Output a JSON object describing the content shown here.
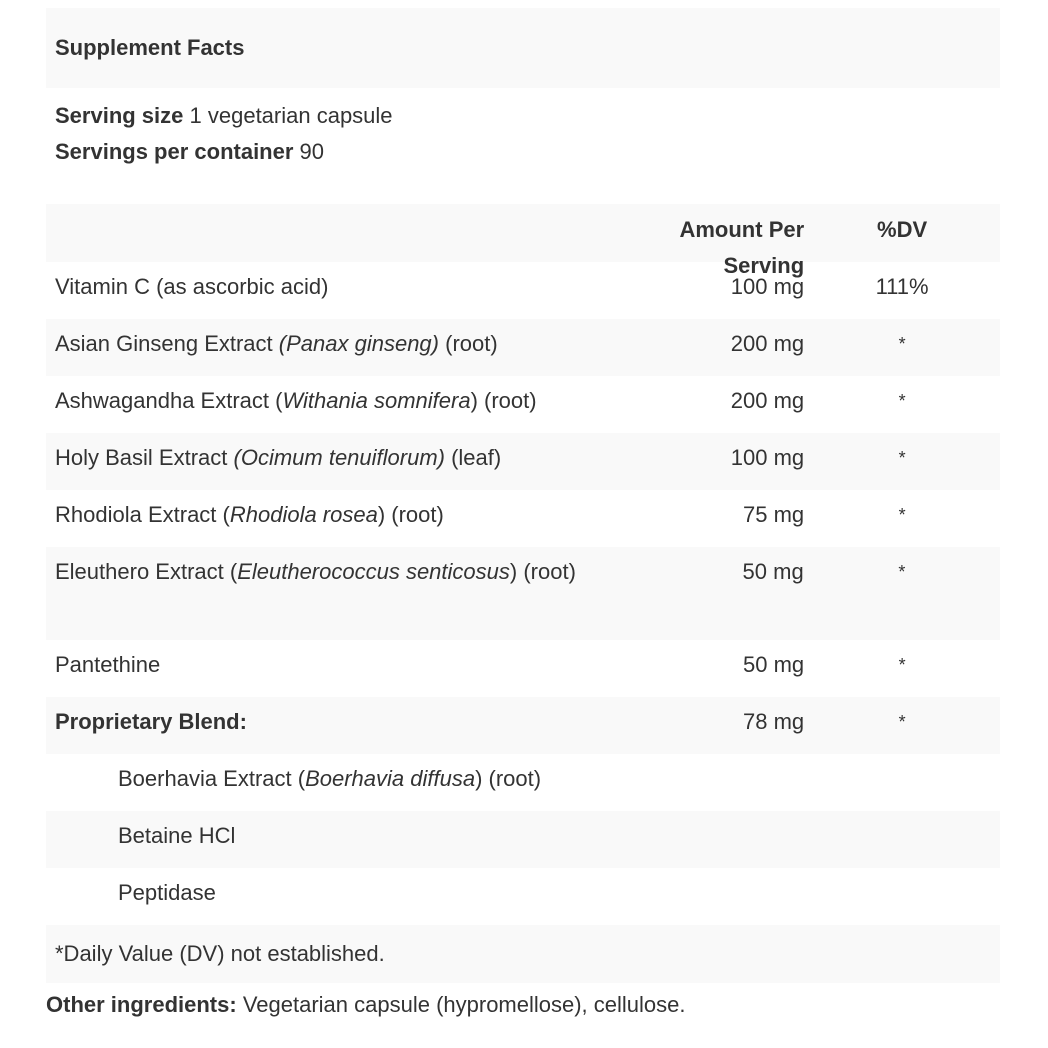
{
  "title": "Supplement Facts",
  "serving_size_label": "Serving size",
  "serving_size_value": "1 vegetarian capsule",
  "servings_label": "Servings per container",
  "servings_value": "90",
  "header": {
    "amount": "Amount Per Serving",
    "dv": "%DV"
  },
  "rows": [
    {
      "pre": "Vitamin C (as ascorbic acid)",
      "it": "",
      "post": "",
      "amount": "100 mg",
      "dv": "111%"
    },
    {
      "pre": "Asian Ginseng Extract ",
      "it": "(Panax ginseng)",
      "post": " (root)",
      "amount": "200 mg",
      "dv": "*"
    },
    {
      "pre": "Ashwagandha Extract (",
      "it": "Withania somnifera",
      "post": ") (root)",
      "amount": "200 mg",
      "dv": "*"
    },
    {
      "pre": "Holy Basil Extract ",
      "it": "(Ocimum tenuiflorum)",
      "post": " (leaf)",
      "amount": "100 mg",
      "dv": "*"
    },
    {
      "pre": "Rhodiola Extract (",
      "it": "Rhodiola rosea",
      "post": ") (root)",
      "amount": "75 mg",
      "dv": "*"
    },
    {
      "pre": "Eleuthero Extract (",
      "it": "Eleutherococcus senticosus",
      "post": ") (root)",
      "amount": "50 mg",
      "dv": "*"
    },
    {
      "pre": "Pantethine",
      "it": "",
      "post": "",
      "amount": "50 mg",
      "dv": "*"
    },
    {
      "pre": "Proprietary Blend:",
      "it": "",
      "post": "",
      "amount": "78 mg",
      "dv": "*"
    }
  ],
  "blend": [
    {
      "pre": "Boerhavia Extract (",
      "it": "Boerhavia diffusa",
      "post": ") (root)"
    },
    {
      "pre": "Betaine HCl",
      "it": "",
      "post": ""
    },
    {
      "pre": "Peptidase",
      "it": "",
      "post": ""
    }
  ],
  "footnote": "*Daily Value (DV) not established.",
  "other_label": "Other ingredients:",
  "other_value": "Vegetarian capsule (hypromellose), cellulose."
}
